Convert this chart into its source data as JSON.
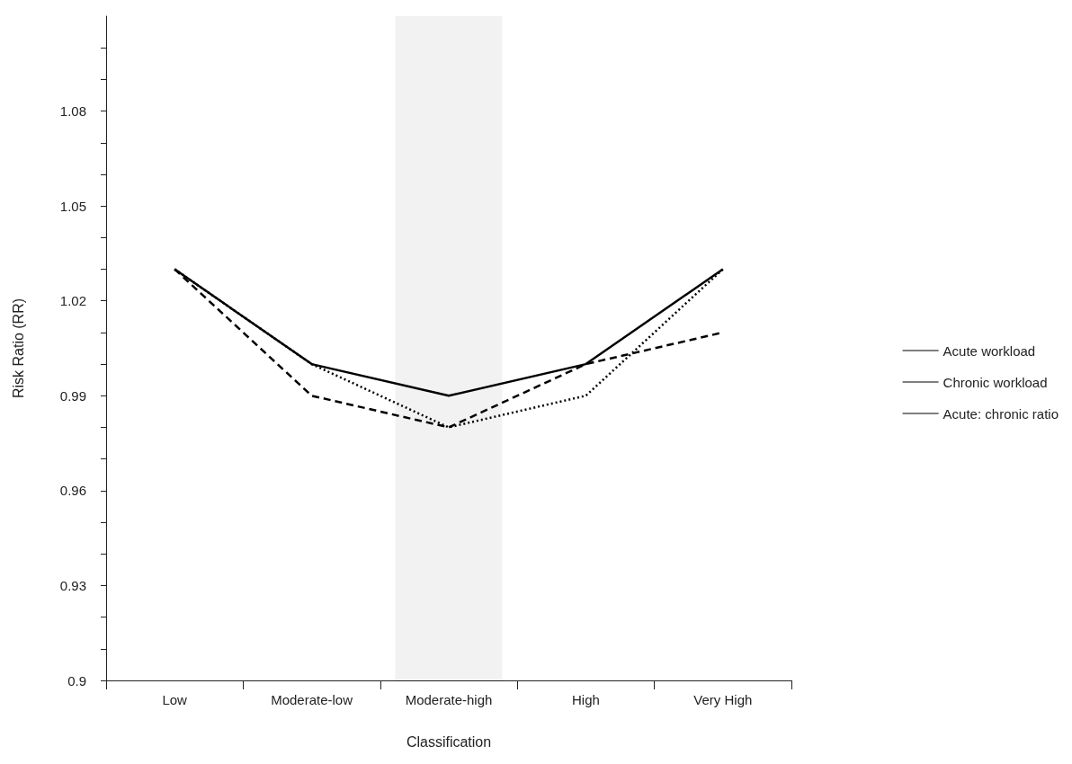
{
  "chart_data": {
    "type": "line",
    "xlabel": "Classification",
    "ylabel": "Risk Ratio (RR)",
    "categories": [
      "Low",
      "Moderate-low",
      "Moderate-high",
      "High",
      "Very High"
    ],
    "series": [
      {
        "name": "Acute workload",
        "color": "#000000",
        "line_style": "dashed",
        "values": [
          1.03,
          0.99,
          0.98,
          1.0,
          1.01
        ]
      },
      {
        "name": "Chronic workload",
        "color": "#000000",
        "line_style": "dotted",
        "values": [
          1.03,
          1.0,
          0.98,
          0.99,
          1.03
        ]
      },
      {
        "name": "Acute: chronic ratio",
        "color": "#000000",
        "line_style": "solid",
        "values": [
          1.03,
          1.0,
          0.99,
          1.0,
          1.03
        ]
      }
    ],
    "ylim": [
      0.9,
      1.11
    ],
    "yticks": [
      0.9,
      {
        "value": 0.91,
        "label": null
      },
      {
        "value": 0.92,
        "label": null
      },
      0.93,
      {
        "value": 0.94,
        "label": null
      },
      {
        "value": 0.95,
        "label": null
      },
      0.96,
      {
        "value": 0.97,
        "label": null
      },
      {
        "value": 0.98,
        "label": null
      },
      0.99,
      {
        "value": 1.0,
        "label": null
      },
      {
        "value": 1.01,
        "label": null
      },
      1.02,
      {
        "value": 1.03,
        "label": null
      },
      {
        "value": 1.04,
        "label": null
      },
      1.05,
      {
        "value": 1.06,
        "label": null
      },
      {
        "value": 1.07,
        "label": null
      },
      1.08,
      {
        "value": 1.09,
        "label": null
      },
      {
        "value": 1.1,
        "label": null
      }
    ],
    "bands": [
      {
        "axis": "x",
        "from": "Moderate-high",
        "to": "Moderate-high",
        "color": "#f2f2f2"
      }
    ],
    "marker": "none",
    "grid": false,
    "legend": "right"
  }
}
